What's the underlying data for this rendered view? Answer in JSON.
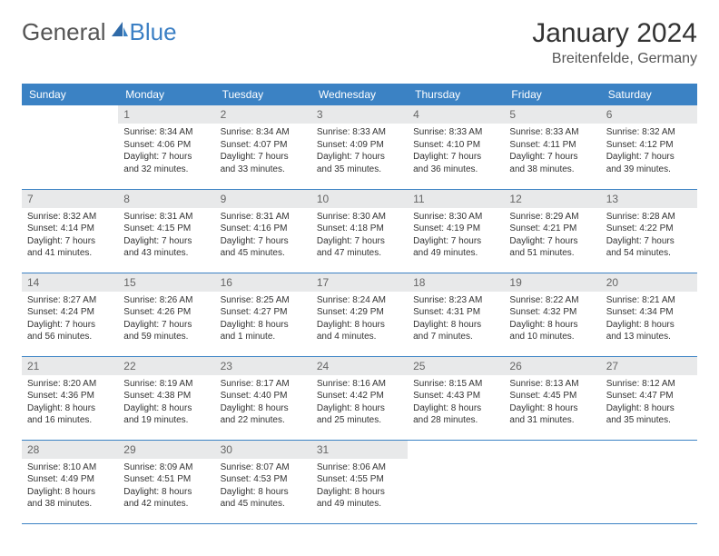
{
  "logo": {
    "text1": "General",
    "text2": "Blue"
  },
  "title": "January 2024",
  "location": "Breitenfelde, Germany",
  "colors": {
    "header_bg": "#3b82c4",
    "header_text": "#ffffff",
    "daynum_bg": "#e8e9ea",
    "daynum_text": "#666666",
    "border": "#3b82c4",
    "logo_accent": "#3b7fc4"
  },
  "weekdays": [
    "Sunday",
    "Monday",
    "Tuesday",
    "Wednesday",
    "Thursday",
    "Friday",
    "Saturday"
  ],
  "grid": [
    [
      null,
      {
        "n": "1",
        "sr": "Sunrise: 8:34 AM",
        "ss": "Sunset: 4:06 PM",
        "d1": "Daylight: 7 hours",
        "d2": "and 32 minutes."
      },
      {
        "n": "2",
        "sr": "Sunrise: 8:34 AM",
        "ss": "Sunset: 4:07 PM",
        "d1": "Daylight: 7 hours",
        "d2": "and 33 minutes."
      },
      {
        "n": "3",
        "sr": "Sunrise: 8:33 AM",
        "ss": "Sunset: 4:09 PM",
        "d1": "Daylight: 7 hours",
        "d2": "and 35 minutes."
      },
      {
        "n": "4",
        "sr": "Sunrise: 8:33 AM",
        "ss": "Sunset: 4:10 PM",
        "d1": "Daylight: 7 hours",
        "d2": "and 36 minutes."
      },
      {
        "n": "5",
        "sr": "Sunrise: 8:33 AM",
        "ss": "Sunset: 4:11 PM",
        "d1": "Daylight: 7 hours",
        "d2": "and 38 minutes."
      },
      {
        "n": "6",
        "sr": "Sunrise: 8:32 AM",
        "ss": "Sunset: 4:12 PM",
        "d1": "Daylight: 7 hours",
        "d2": "and 39 minutes."
      }
    ],
    [
      {
        "n": "7",
        "sr": "Sunrise: 8:32 AM",
        "ss": "Sunset: 4:14 PM",
        "d1": "Daylight: 7 hours",
        "d2": "and 41 minutes."
      },
      {
        "n": "8",
        "sr": "Sunrise: 8:31 AM",
        "ss": "Sunset: 4:15 PM",
        "d1": "Daylight: 7 hours",
        "d2": "and 43 minutes."
      },
      {
        "n": "9",
        "sr": "Sunrise: 8:31 AM",
        "ss": "Sunset: 4:16 PM",
        "d1": "Daylight: 7 hours",
        "d2": "and 45 minutes."
      },
      {
        "n": "10",
        "sr": "Sunrise: 8:30 AM",
        "ss": "Sunset: 4:18 PM",
        "d1": "Daylight: 7 hours",
        "d2": "and 47 minutes."
      },
      {
        "n": "11",
        "sr": "Sunrise: 8:30 AM",
        "ss": "Sunset: 4:19 PM",
        "d1": "Daylight: 7 hours",
        "d2": "and 49 minutes."
      },
      {
        "n": "12",
        "sr": "Sunrise: 8:29 AM",
        "ss": "Sunset: 4:21 PM",
        "d1": "Daylight: 7 hours",
        "d2": "and 51 minutes."
      },
      {
        "n": "13",
        "sr": "Sunrise: 8:28 AM",
        "ss": "Sunset: 4:22 PM",
        "d1": "Daylight: 7 hours",
        "d2": "and 54 minutes."
      }
    ],
    [
      {
        "n": "14",
        "sr": "Sunrise: 8:27 AM",
        "ss": "Sunset: 4:24 PM",
        "d1": "Daylight: 7 hours",
        "d2": "and 56 minutes."
      },
      {
        "n": "15",
        "sr": "Sunrise: 8:26 AM",
        "ss": "Sunset: 4:26 PM",
        "d1": "Daylight: 7 hours",
        "d2": "and 59 minutes."
      },
      {
        "n": "16",
        "sr": "Sunrise: 8:25 AM",
        "ss": "Sunset: 4:27 PM",
        "d1": "Daylight: 8 hours",
        "d2": "and 1 minute."
      },
      {
        "n": "17",
        "sr": "Sunrise: 8:24 AM",
        "ss": "Sunset: 4:29 PM",
        "d1": "Daylight: 8 hours",
        "d2": "and 4 minutes."
      },
      {
        "n": "18",
        "sr": "Sunrise: 8:23 AM",
        "ss": "Sunset: 4:31 PM",
        "d1": "Daylight: 8 hours",
        "d2": "and 7 minutes."
      },
      {
        "n": "19",
        "sr": "Sunrise: 8:22 AM",
        "ss": "Sunset: 4:32 PM",
        "d1": "Daylight: 8 hours",
        "d2": "and 10 minutes."
      },
      {
        "n": "20",
        "sr": "Sunrise: 8:21 AM",
        "ss": "Sunset: 4:34 PM",
        "d1": "Daylight: 8 hours",
        "d2": "and 13 minutes."
      }
    ],
    [
      {
        "n": "21",
        "sr": "Sunrise: 8:20 AM",
        "ss": "Sunset: 4:36 PM",
        "d1": "Daylight: 8 hours",
        "d2": "and 16 minutes."
      },
      {
        "n": "22",
        "sr": "Sunrise: 8:19 AM",
        "ss": "Sunset: 4:38 PM",
        "d1": "Daylight: 8 hours",
        "d2": "and 19 minutes."
      },
      {
        "n": "23",
        "sr": "Sunrise: 8:17 AM",
        "ss": "Sunset: 4:40 PM",
        "d1": "Daylight: 8 hours",
        "d2": "and 22 minutes."
      },
      {
        "n": "24",
        "sr": "Sunrise: 8:16 AM",
        "ss": "Sunset: 4:42 PM",
        "d1": "Daylight: 8 hours",
        "d2": "and 25 minutes."
      },
      {
        "n": "25",
        "sr": "Sunrise: 8:15 AM",
        "ss": "Sunset: 4:43 PM",
        "d1": "Daylight: 8 hours",
        "d2": "and 28 minutes."
      },
      {
        "n": "26",
        "sr": "Sunrise: 8:13 AM",
        "ss": "Sunset: 4:45 PM",
        "d1": "Daylight: 8 hours",
        "d2": "and 31 minutes."
      },
      {
        "n": "27",
        "sr": "Sunrise: 8:12 AM",
        "ss": "Sunset: 4:47 PM",
        "d1": "Daylight: 8 hours",
        "d2": "and 35 minutes."
      }
    ],
    [
      {
        "n": "28",
        "sr": "Sunrise: 8:10 AM",
        "ss": "Sunset: 4:49 PM",
        "d1": "Daylight: 8 hours",
        "d2": "and 38 minutes."
      },
      {
        "n": "29",
        "sr": "Sunrise: 8:09 AM",
        "ss": "Sunset: 4:51 PM",
        "d1": "Daylight: 8 hours",
        "d2": "and 42 minutes."
      },
      {
        "n": "30",
        "sr": "Sunrise: 8:07 AM",
        "ss": "Sunset: 4:53 PM",
        "d1": "Daylight: 8 hours",
        "d2": "and 45 minutes."
      },
      {
        "n": "31",
        "sr": "Sunrise: 8:06 AM",
        "ss": "Sunset: 4:55 PM",
        "d1": "Daylight: 8 hours",
        "d2": "and 49 minutes."
      },
      null,
      null,
      null
    ]
  ]
}
